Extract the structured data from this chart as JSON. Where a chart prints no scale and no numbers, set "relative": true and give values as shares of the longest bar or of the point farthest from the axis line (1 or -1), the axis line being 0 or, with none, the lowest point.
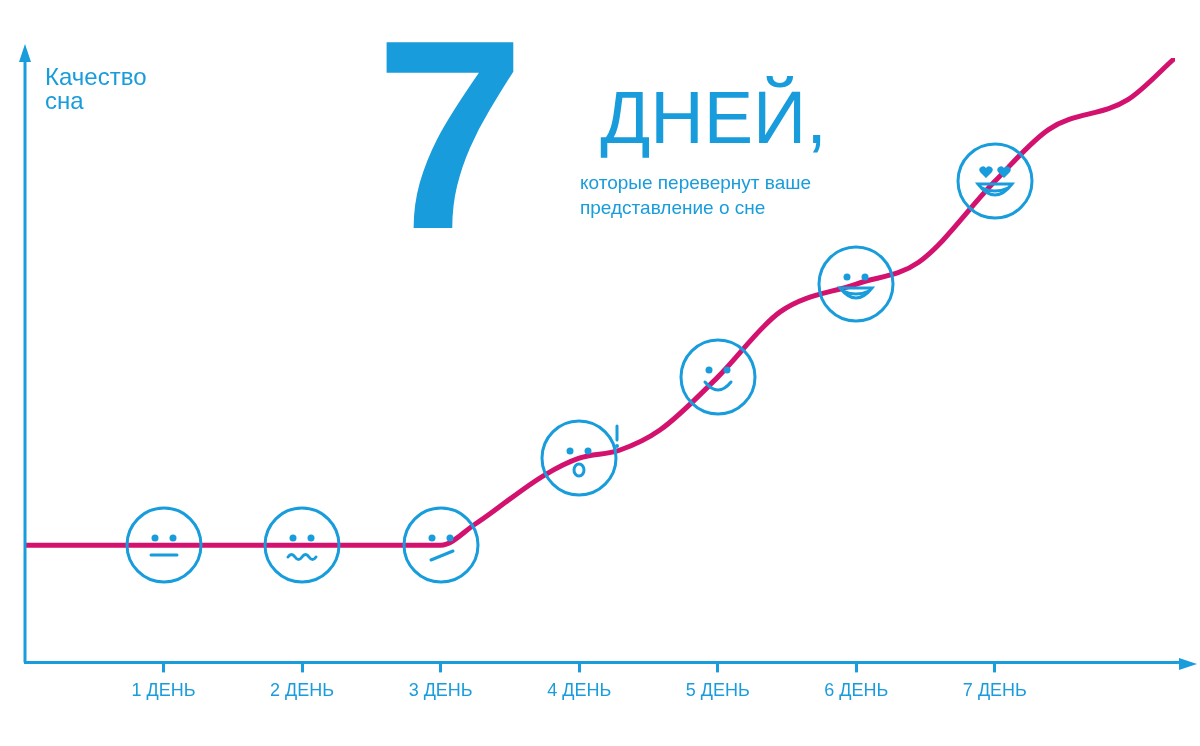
{
  "chart_data": {
    "type": "line",
    "relative": true,
    "title": "7 ДНЕЙ,",
    "subtitle": "которые перевернут ваше представление о сне",
    "ylabel": "Качество сна",
    "x": [
      0,
      1,
      2,
      3,
      3.25,
      3.75,
      4,
      4.29,
      4.58,
      5,
      5.45,
      6,
      6.45,
      7,
      7.39,
      7.96,
      8.3
    ],
    "xlim": [
      0,
      8.3
    ],
    "xticks": [
      {
        "value": 1,
        "label": "1 ДЕНЬ"
      },
      {
        "value": 2,
        "label": "2 ДЕНЬ"
      },
      {
        "value": 3,
        "label": "3 ДЕНЬ"
      },
      {
        "value": 4,
        "label": "4 ДЕНЬ"
      },
      {
        "value": 5,
        "label": "5 ДЕНЬ"
      },
      {
        "value": 6,
        "label": "6 ДЕНЬ"
      },
      {
        "value": 7,
        "label": "7 ДЕНЬ"
      }
    ],
    "series": [
      {
        "color": "#d3116e",
        "values": [
          0.194,
          0.194,
          0.194,
          0.194,
          0.229,
          0.31,
          0.338,
          0.351,
          0.384,
          0.472,
          0.58,
          0.626,
          0.662,
          0.796,
          0.882,
          0.931,
          1.0
        ]
      }
    ],
    "grid": false,
    "legend": false,
    "marker": "none",
    "line_style": "solid"
  }
}
